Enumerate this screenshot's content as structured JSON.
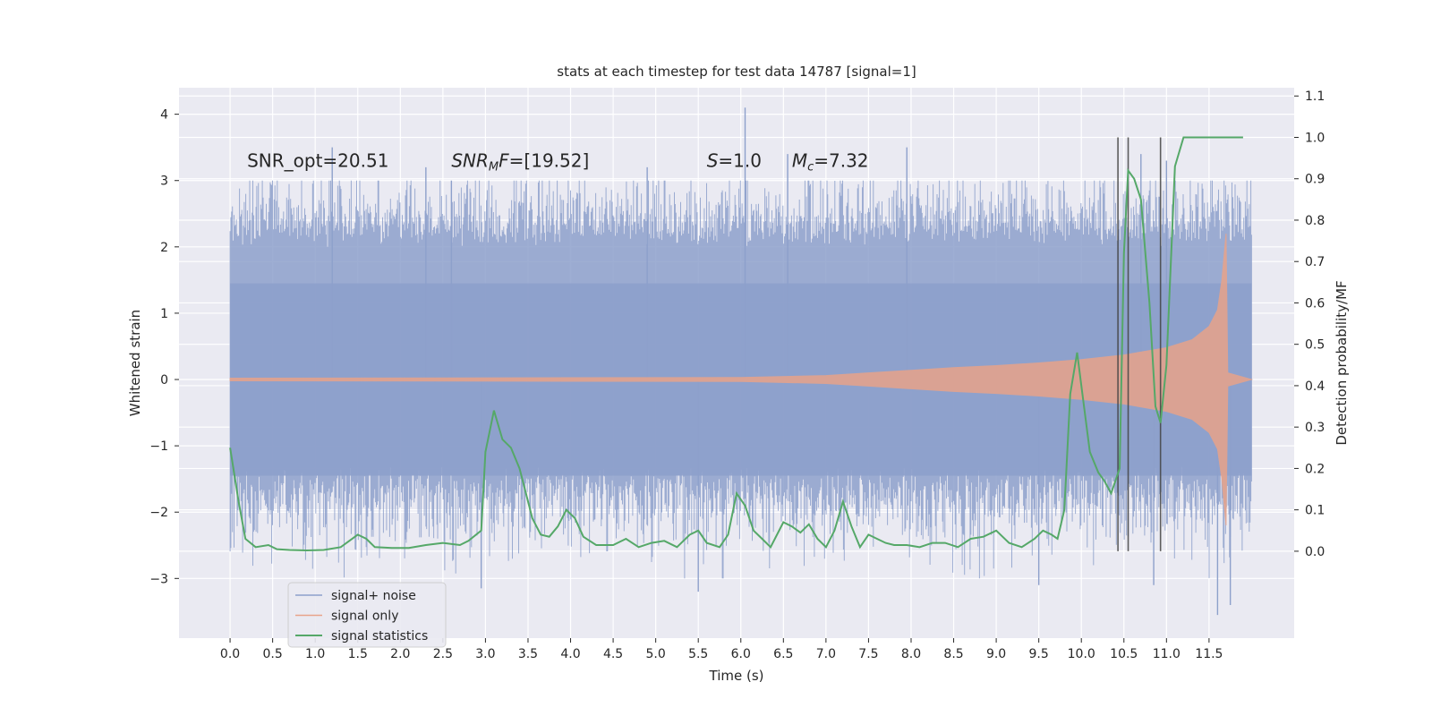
{
  "chart_data": {
    "type": "line",
    "title": "stats at each timestep for test data 14787 [signal=1]",
    "xlabel": "Time (s)",
    "ylabel": "Whitened strain",
    "y2label": "Detection probability/MF",
    "xlim": [
      -0.6,
      12.5
    ],
    "ylim": [
      -3.9,
      4.4
    ],
    "y2lim": [
      -0.21,
      1.12
    ],
    "xticks": [
      0.0,
      0.5,
      1.0,
      1.5,
      2.0,
      2.5,
      3.0,
      3.5,
      4.0,
      4.5,
      5.0,
      5.5,
      6.0,
      6.5,
      7.0,
      7.5,
      8.0,
      8.5,
      9.0,
      9.5,
      10.0,
      10.5,
      11.0,
      11.5
    ],
    "xtick_labels": [
      "0.0",
      "0.5",
      "1.0",
      "1.5",
      "2.0",
      "2.5",
      "3.0",
      "3.5",
      "4.0",
      "4.5",
      "5.0",
      "5.5",
      "6.0",
      "6.5",
      "7.0",
      "7.5",
      "8.0",
      "8.5",
      "9.0",
      "9.5",
      "10.0",
      "10.5",
      "11.0",
      "11.5"
    ],
    "yticks": [
      -3,
      -2,
      -1,
      0,
      1,
      2,
      3,
      4
    ],
    "ytick_labels": [
      "−3",
      "−2",
      "−1",
      "0",
      "1",
      "2",
      "3",
      "4"
    ],
    "y2ticks": [
      0.0,
      0.1,
      0.2,
      0.3,
      0.4,
      0.5,
      0.6,
      0.7,
      0.8,
      0.9,
      1.0,
      1.1
    ],
    "y2tick_labels": [
      "0.0",
      "0.1",
      "0.2",
      "0.3",
      "0.4",
      "0.5",
      "0.6",
      "0.7",
      "0.8",
      "0.9",
      "1.0",
      "1.1"
    ],
    "annotations": [
      {
        "text": "SNR_opt=20.51",
        "x": 0.2,
        "y": 3.3
      },
      {
        "text": "SNRMF=[19.52]",
        "x": 2.6,
        "y": 3.3
      },
      {
        "text": "S=1.0",
        "x": 5.6,
        "y": 3.3
      },
      {
        "text": "Mc=7.32",
        "x": 6.6,
        "y": 3.3
      }
    ],
    "vlines": [
      10.43,
      10.55,
      10.93
    ],
    "vline_range": [
      0.0,
      1.0
    ],
    "signal_noise": {
      "name": "signal+ noise",
      "color": "#8da0cb",
      "x_range": [
        0.0,
        12.0
      ],
      "core_envelope": 1.45,
      "typical_peak": [
        2.0,
        2.6
      ],
      "trough_typical": [
        -1.3,
        -2.6
      ],
      "notable_peaks": [
        {
          "x": 1.2,
          "y": 3.5
        },
        {
          "x": 2.3,
          "y": 3.2
        },
        {
          "x": 2.6,
          "y": 3.0
        },
        {
          "x": 4.9,
          "y": 3.2
        },
        {
          "x": 6.05,
          "y": 4.1
        },
        {
          "x": 6.55,
          "y": 3.4
        },
        {
          "x": 7.95,
          "y": 3.5
        },
        {
          "x": 11.0,
          "y": 3.3
        },
        {
          "x": 10.7,
          "y": 3.4
        }
      ],
      "notable_troughs": [
        {
          "x": 2.95,
          "y": -3.15
        },
        {
          "x": 5.5,
          "y": -3.2
        },
        {
          "x": 11.6,
          "y": -3.55
        },
        {
          "x": 11.75,
          "y": -3.4
        },
        {
          "x": 10.85,
          "y": -3.1
        },
        {
          "x": 9.5,
          "y": -3.1
        }
      ]
    },
    "signal_only": {
      "name": "signal only",
      "color": "#e8a38a",
      "envelope": {
        "x": [
          0.0,
          6.0,
          7.0,
          7.5,
          8.0,
          8.5,
          9.0,
          9.5,
          10.0,
          10.5,
          11.0,
          11.3,
          11.5,
          11.6,
          11.65,
          11.7,
          11.72,
          12.0
        ],
        "amp": [
          0.02,
          0.03,
          0.06,
          0.1,
          0.14,
          0.18,
          0.21,
          0.25,
          0.3,
          0.37,
          0.48,
          0.6,
          0.8,
          1.05,
          1.5,
          2.2,
          0.1,
          0.0
        ]
      }
    },
    "signal_statistics": {
      "name": "signal statistics",
      "color": "#55a868",
      "x": [
        0.0,
        0.1,
        0.18,
        0.3,
        0.45,
        0.55,
        0.7,
        0.9,
        1.1,
        1.3,
        1.5,
        1.6,
        1.7,
        1.9,
        2.1,
        2.3,
        2.5,
        2.7,
        2.8,
        2.95,
        3.0,
        3.1,
        3.2,
        3.3,
        3.4,
        3.5,
        3.55,
        3.65,
        3.75,
        3.85,
        3.95,
        4.05,
        4.15,
        4.3,
        4.5,
        4.65,
        4.8,
        4.95,
        5.1,
        5.25,
        5.4,
        5.5,
        5.6,
        5.75,
        5.85,
        5.95,
        6.05,
        6.15,
        6.25,
        6.35,
        6.5,
        6.6,
        6.7,
        6.8,
        6.9,
        7.0,
        7.1,
        7.2,
        7.3,
        7.4,
        7.5,
        7.6,
        7.7,
        7.8,
        7.95,
        8.1,
        8.25,
        8.4,
        8.55,
        8.7,
        8.85,
        9.0,
        9.15,
        9.3,
        9.45,
        9.55,
        9.65,
        9.72,
        9.8,
        9.87,
        9.95,
        10.0,
        10.1,
        10.2,
        10.27,
        10.35,
        10.45,
        10.5,
        10.55,
        10.62,
        10.7,
        10.8,
        10.87,
        10.93,
        11.0,
        11.1,
        11.2,
        11.35,
        11.5,
        11.7,
        11.9
      ],
      "y": [
        0.25,
        0.12,
        0.03,
        0.01,
        0.015,
        0.005,
        0.003,
        0.002,
        0.003,
        0.01,
        0.04,
        0.03,
        0.01,
        0.008,
        0.008,
        0.015,
        0.02,
        0.015,
        0.025,
        0.05,
        0.24,
        0.34,
        0.27,
        0.25,
        0.2,
        0.12,
        0.08,
        0.04,
        0.035,
        0.06,
        0.1,
        0.08,
        0.035,
        0.015,
        0.015,
        0.03,
        0.01,
        0.02,
        0.025,
        0.01,
        0.04,
        0.05,
        0.02,
        0.01,
        0.04,
        0.14,
        0.11,
        0.05,
        0.03,
        0.01,
        0.07,
        0.06,
        0.045,
        0.065,
        0.03,
        0.01,
        0.05,
        0.12,
        0.06,
        0.01,
        0.04,
        0.03,
        0.02,
        0.015,
        0.015,
        0.01,
        0.02,
        0.02,
        0.01,
        0.03,
        0.035,
        0.05,
        0.02,
        0.01,
        0.03,
        0.05,
        0.04,
        0.03,
        0.1,
        0.38,
        0.48,
        0.4,
        0.24,
        0.19,
        0.17,
        0.14,
        0.2,
        0.72,
        0.92,
        0.9,
        0.85,
        0.6,
        0.35,
        0.31,
        0.45,
        0.93,
        1.0,
        1.0,
        1.0,
        1.0,
        1.0
      ]
    },
    "legend": {
      "placement": "lower-left",
      "items": [
        "signal+ noise",
        "signal only",
        "signal statistics"
      ]
    },
    "grid": true
  }
}
